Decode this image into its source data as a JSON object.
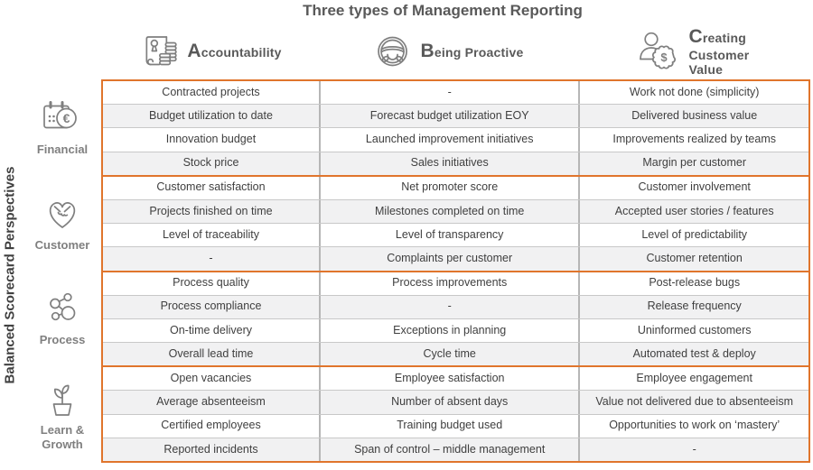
{
  "title": "Three types of Management Reporting",
  "colors": {
    "accent_orange": "#E0752C",
    "grid_gray": "#BFBFBF",
    "row_alt_gray": "#F1F1F2",
    "cell_text": "#3F3F3F",
    "icon_gray": "#7F7F7F",
    "heading_gray": "#595959"
  },
  "left_axis": {
    "label": "Balanced Scorecard Perspectives"
  },
  "columns": [
    {
      "label": "Accountability",
      "icon": "scroll-and-coins-icon"
    },
    {
      "label": "Being Proactive",
      "icon": "steering-wheel-icon"
    },
    {
      "label": "Creating Customer Value",
      "icon": "person-dollar-coin-icon"
    }
  ],
  "groups": [
    {
      "key": "financial",
      "label": "Financial",
      "icon": "calendar-euro-icon",
      "rows": [
        [
          "Contracted projects",
          "-",
          "Work not done (simplicity)"
        ],
        [
          "Budget utilization to date",
          "Forecast budget utilization EOY",
          "Delivered business value"
        ],
        [
          "Innovation budget",
          "Launched improvement initiatives",
          "Improvements realized by teams"
        ],
        [
          "Stock price",
          "Sales initiatives",
          "Margin per customer"
        ]
      ]
    },
    {
      "key": "customer",
      "label": "Customer",
      "icon": "handshake-heart-icon",
      "rows": [
        [
          "Customer satisfaction",
          "Net promoter score",
          "Customer involvement"
        ],
        [
          "Projects finished on time",
          "Milestones completed on time",
          "Accepted user stories / features"
        ],
        [
          "Level of traceability",
          "Level of transparency",
          "Level of predictability"
        ],
        [
          "-",
          "Complaints per customer",
          "Customer retention"
        ]
      ]
    },
    {
      "key": "process",
      "label": "Process",
      "icon": "molecule-icon",
      "rows": [
        [
          "Process quality",
          "Process improvements",
          "Post-release bugs"
        ],
        [
          "Process compliance",
          "-",
          "Release frequency"
        ],
        [
          "On-time delivery",
          "Exceptions in planning",
          "Uninformed customers"
        ],
        [
          "Overall lead time",
          "Cycle time",
          "Automated test & deploy"
        ]
      ]
    },
    {
      "key": "learn-growth",
      "label": "Learn & Growth",
      "icon": "plant-pot-icon",
      "rows": [
        [
          "Open vacancies",
          "Employee satisfaction",
          "Employee engagement"
        ],
        [
          "Average absenteeism",
          "Number of absent days",
          "Value not delivered due to absenteeism"
        ],
        [
          "Certified employees",
          "Training budget used",
          "Opportunities to work on ‘mastery’"
        ],
        [
          "Reported incidents",
          "Span of control – middle management",
          "-"
        ]
      ]
    }
  ]
}
